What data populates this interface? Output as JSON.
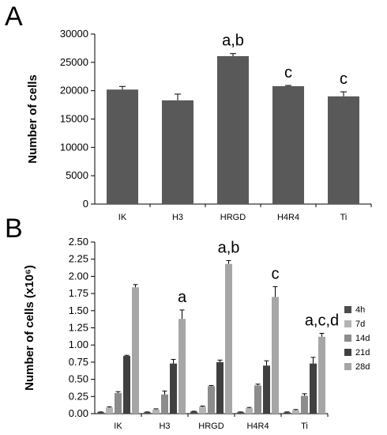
{
  "chart_data": [
    {
      "panel": "A",
      "type": "bar",
      "categories": [
        "IK",
        "H3",
        "HRGD",
        "H4R4",
        "Ti"
      ],
      "values": [
        20200,
        18300,
        26100,
        20800,
        19000
      ],
      "errors": [
        550,
        1100,
        450,
        120,
        800
      ],
      "annotations": [
        "",
        "",
        "a,b",
        "c",
        "c"
      ],
      "ylabel": "Number of cells",
      "yticks": [
        "0",
        "5000",
        "10000",
        "15000",
        "20000",
        "25000",
        "30000"
      ],
      "ylim": [
        0,
        30000
      ],
      "color": "#595959"
    },
    {
      "panel": "B",
      "type": "bar",
      "categories": [
        "IK",
        "H3",
        "HRGD",
        "H4R4",
        "Ti"
      ],
      "series": [
        {
          "name": "4h",
          "color": "#4d4d4d",
          "values": [
            0.02,
            0.02,
            0.03,
            0.02,
            0.02
          ],
          "errors": [
            0.005,
            0.005,
            0.005,
            0.005,
            0.005
          ]
        },
        {
          "name": "7d",
          "color": "#b3b3b3",
          "values": [
            0.09,
            0.06,
            0.1,
            0.08,
            0.05
          ],
          "errors": [
            0.01,
            0.01,
            0.01,
            0.01,
            0.01
          ]
        },
        {
          "name": "14d",
          "color": "#8c8c8c",
          "values": [
            0.3,
            0.28,
            0.4,
            0.41,
            0.26
          ],
          "errors": [
            0.02,
            0.05,
            0.01,
            0.02,
            0.03
          ]
        },
        {
          "name": "21d",
          "color": "#404040",
          "values": [
            0.84,
            0.73,
            0.75,
            0.7,
            0.73
          ],
          "errors": [
            0.01,
            0.06,
            0.03,
            0.07,
            0.09
          ]
        },
        {
          "name": "28d",
          "color": "#a6a6a6",
          "values": [
            1.84,
            1.38,
            2.18,
            1.7,
            1.12
          ],
          "errors": [
            0.04,
            0.13,
            0.05,
            0.15,
            0.05
          ]
        }
      ],
      "annotations": [
        "",
        "a",
        "a,b",
        "c",
        "a,c,d"
      ],
      "ylabel": "Number of cells (x10⁶)",
      "yticks": [
        "0.00",
        "0.25",
        "0.50",
        "0.75",
        "1.00",
        "1.25",
        "1.50",
        "1.75",
        "2.00",
        "2.25",
        "2.50"
      ],
      "ylim": [
        0,
        2.5
      ]
    }
  ],
  "labels": {
    "panel_a": "A",
    "panel_b": "B"
  }
}
